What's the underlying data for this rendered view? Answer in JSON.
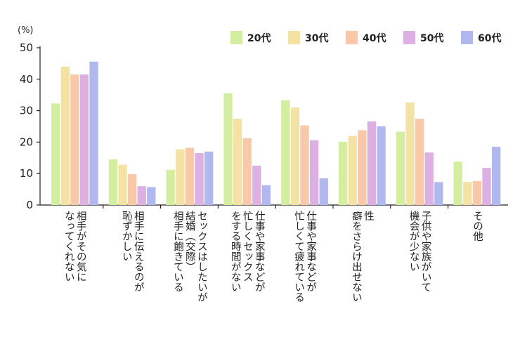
{
  "chart_data": {
    "type": "bar",
    "unit_label": "(%)",
    "ylim": [
      0,
      50
    ],
    "yticks": [
      0,
      10,
      20,
      30,
      40,
      50
    ],
    "legend_position": "top-right",
    "grid": false,
    "categories": [
      [
        "相手がその気に",
        "なってくれない"
      ],
      [
        "相手に伝えるのが",
        "恥ずかしい"
      ],
      [
        "セックスはしたいが",
        "結婚（交際）",
        "相手に飽きている"
      ],
      [
        "仕事や家事などが",
        "忙しくセックス",
        "をする時間がない"
      ],
      [
        "仕事や家事などが",
        "忙しくて疲れている"
      ],
      [
        "性",
        "癖をさらけ出せない"
      ],
      [
        "子供や家族がいて",
        "機会が少ない"
      ],
      [
        "その他"
      ]
    ],
    "series": [
      {
        "name": "20代",
        "color": "#d4ee9f",
        "values": [
          32.3,
          14.5,
          11.2,
          35.5,
          33.3,
          20.1,
          23.3,
          13.8
        ]
      },
      {
        "name": "30代",
        "color": "#f3e2a4",
        "values": [
          44.0,
          12.8,
          17.7,
          27.4,
          31.0,
          22.0,
          32.6,
          7.3
        ]
      },
      {
        "name": "40代",
        "color": "#f8c8a8",
        "values": [
          41.5,
          9.8,
          18.2,
          21.2,
          25.3,
          23.8,
          27.4,
          7.6
        ]
      },
      {
        "name": "50代",
        "color": "#ddb0e3",
        "values": [
          41.5,
          6.0,
          16.5,
          12.5,
          20.6,
          26.6,
          16.7,
          11.8
        ]
      },
      {
        "name": "60代",
        "color": "#b0b8ef",
        "values": [
          45.6,
          5.7,
          17.0,
          6.3,
          8.5,
          25.0,
          7.3,
          18.5
        ]
      }
    ]
  }
}
